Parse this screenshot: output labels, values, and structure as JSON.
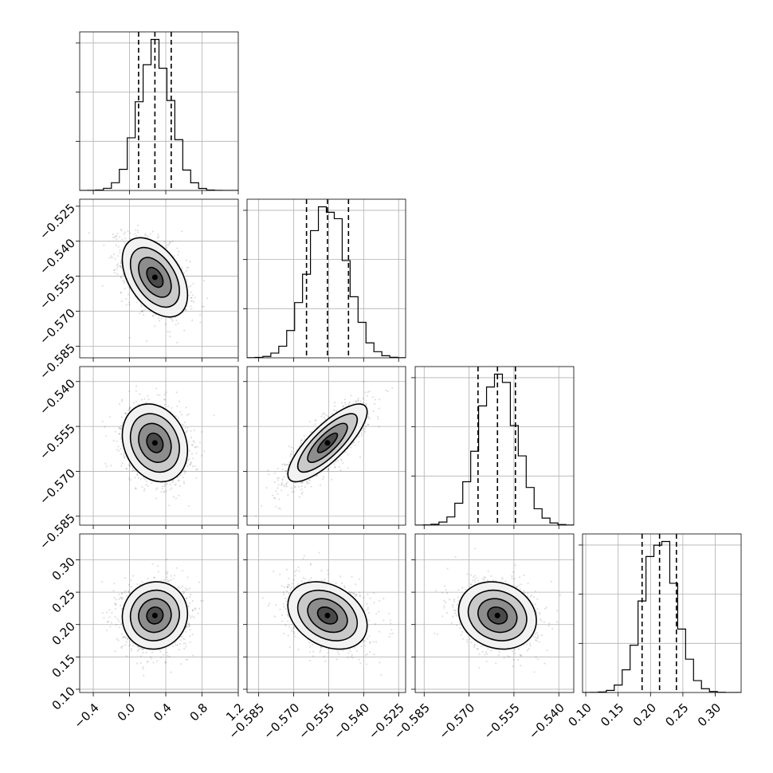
{
  "chart_data": {
    "type": "corner",
    "title": "",
    "grid": true,
    "colors": {
      "line": "#000000",
      "grid": "#b0b0b0",
      "background": "#ffffff"
    },
    "parameters": [
      {
        "index": 0,
        "label": "",
        "range": [
          -0.55,
          1.2
        ],
        "ticks": [
          -0.4,
          0.0,
          0.4,
          0.8,
          1.2
        ],
        "tick_labels": [
          "−0.4",
          "0.0",
          "0.4",
          "0.8",
          "1.2"
        ],
        "quantiles": [
          0.1,
          0.28,
          0.46
        ],
        "center": 0.28,
        "sigma": 0.18
      },
      {
        "index": 1,
        "label": "",
        "range": [
          -0.59,
          -0.522
        ],
        "ticks": [
          -0.585,
          -0.57,
          -0.555,
          -0.54,
          -0.525
        ],
        "tick_labels": [
          "−0.585",
          "−0.570",
          "−0.555",
          "−0.540",
          "−0.525"
        ],
        "quantiles": [
          -0.5645,
          -0.5555,
          -0.5465
        ],
        "center": -0.5555,
        "sigma": 0.0085
      },
      {
        "index": 2,
        "label": "",
        "range": [
          -0.588,
          -0.535
        ],
        "ticks": [
          -0.585,
          -0.57,
          -0.555,
          -0.54
        ],
        "tick_labels": [
          "−0.585",
          "−0.570",
          "−0.555",
          "−0.540"
        ],
        "quantiles": [
          -0.567,
          -0.5605,
          -0.5545
        ],
        "center": -0.5605,
        "sigma": 0.0065
      },
      {
        "index": 3,
        "label": "",
        "range": [
          0.095,
          0.34
        ],
        "ticks": [
          0.1,
          0.15,
          0.2,
          0.25,
          0.3
        ],
        "tick_labels": [
          "0.10",
          "0.15",
          "0.20",
          "0.25",
          "0.30"
        ],
        "quantiles": [
          0.187,
          0.214,
          0.24
        ],
        "center": 0.214,
        "sigma": 0.026
      }
    ],
    "correlations": [
      {
        "row": 1,
        "col": 0,
        "rho": -0.45
      },
      {
        "row": 2,
        "col": 0,
        "rho": -0.2
      },
      {
        "row": 2,
        "col": 1,
        "rho": 0.8
      },
      {
        "row": 3,
        "col": 0,
        "rho": 0.05
      },
      {
        "row": 3,
        "col": 1,
        "rho": -0.3
      },
      {
        "row": 3,
        "col": 2,
        "rho": -0.15
      }
    ],
    "histogram_bins": 20,
    "contour_levels_sigma": [
      0.5,
      1.0,
      1.5,
      2.0
    ]
  }
}
